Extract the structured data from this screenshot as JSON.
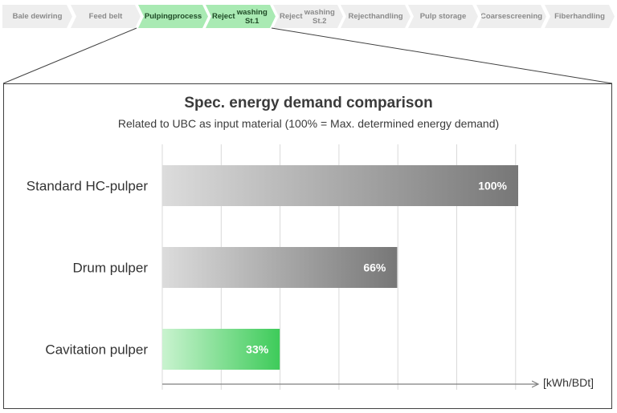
{
  "process_steps": [
    {
      "label": "Bale dewiring",
      "active": false
    },
    {
      "label": "Feed belt",
      "active": false
    },
    {
      "label": "Pulping\nprocess",
      "active": true
    },
    {
      "label": "Reject\nwashing St.1",
      "active": true
    },
    {
      "label": "Reject\nwashing St.2",
      "active": false
    },
    {
      "label": "Reject\nhandling",
      "active": false
    },
    {
      "label": "Pulp storage",
      "active": false
    },
    {
      "label": "Coarse\nscreening",
      "active": false
    },
    {
      "label": "Fiber\nhandling",
      "active": false
    }
  ],
  "colors": {
    "step_active": "#a9eab3",
    "step_inactive": "#eeeeee",
    "bar_gray_start": "#dcdcdc",
    "bar_gray_end": "#777777",
    "bar_green_start": "#c9f3cf",
    "bar_green_end": "#3ecb5a",
    "gridline": "#d9d9d9",
    "axis": "#7f7f7f"
  },
  "chart_data": {
    "type": "bar",
    "orientation": "horizontal",
    "title": "Spec. energy demand comparison",
    "subtitle": "Related to UBC as input material (100% = Max. determined energy demand)",
    "categories": [
      "Standard HC-pulper",
      "Drum pulper",
      "Cavitation pulper"
    ],
    "values": [
      100,
      66,
      33
    ],
    "value_labels": [
      "100%",
      "66%",
      "33%"
    ],
    "highlight": [
      false,
      false,
      true
    ],
    "xlabel": "[kWh/BDt]",
    "xlim": [
      0,
      120
    ],
    "grid": true,
    "legend": "none"
  }
}
